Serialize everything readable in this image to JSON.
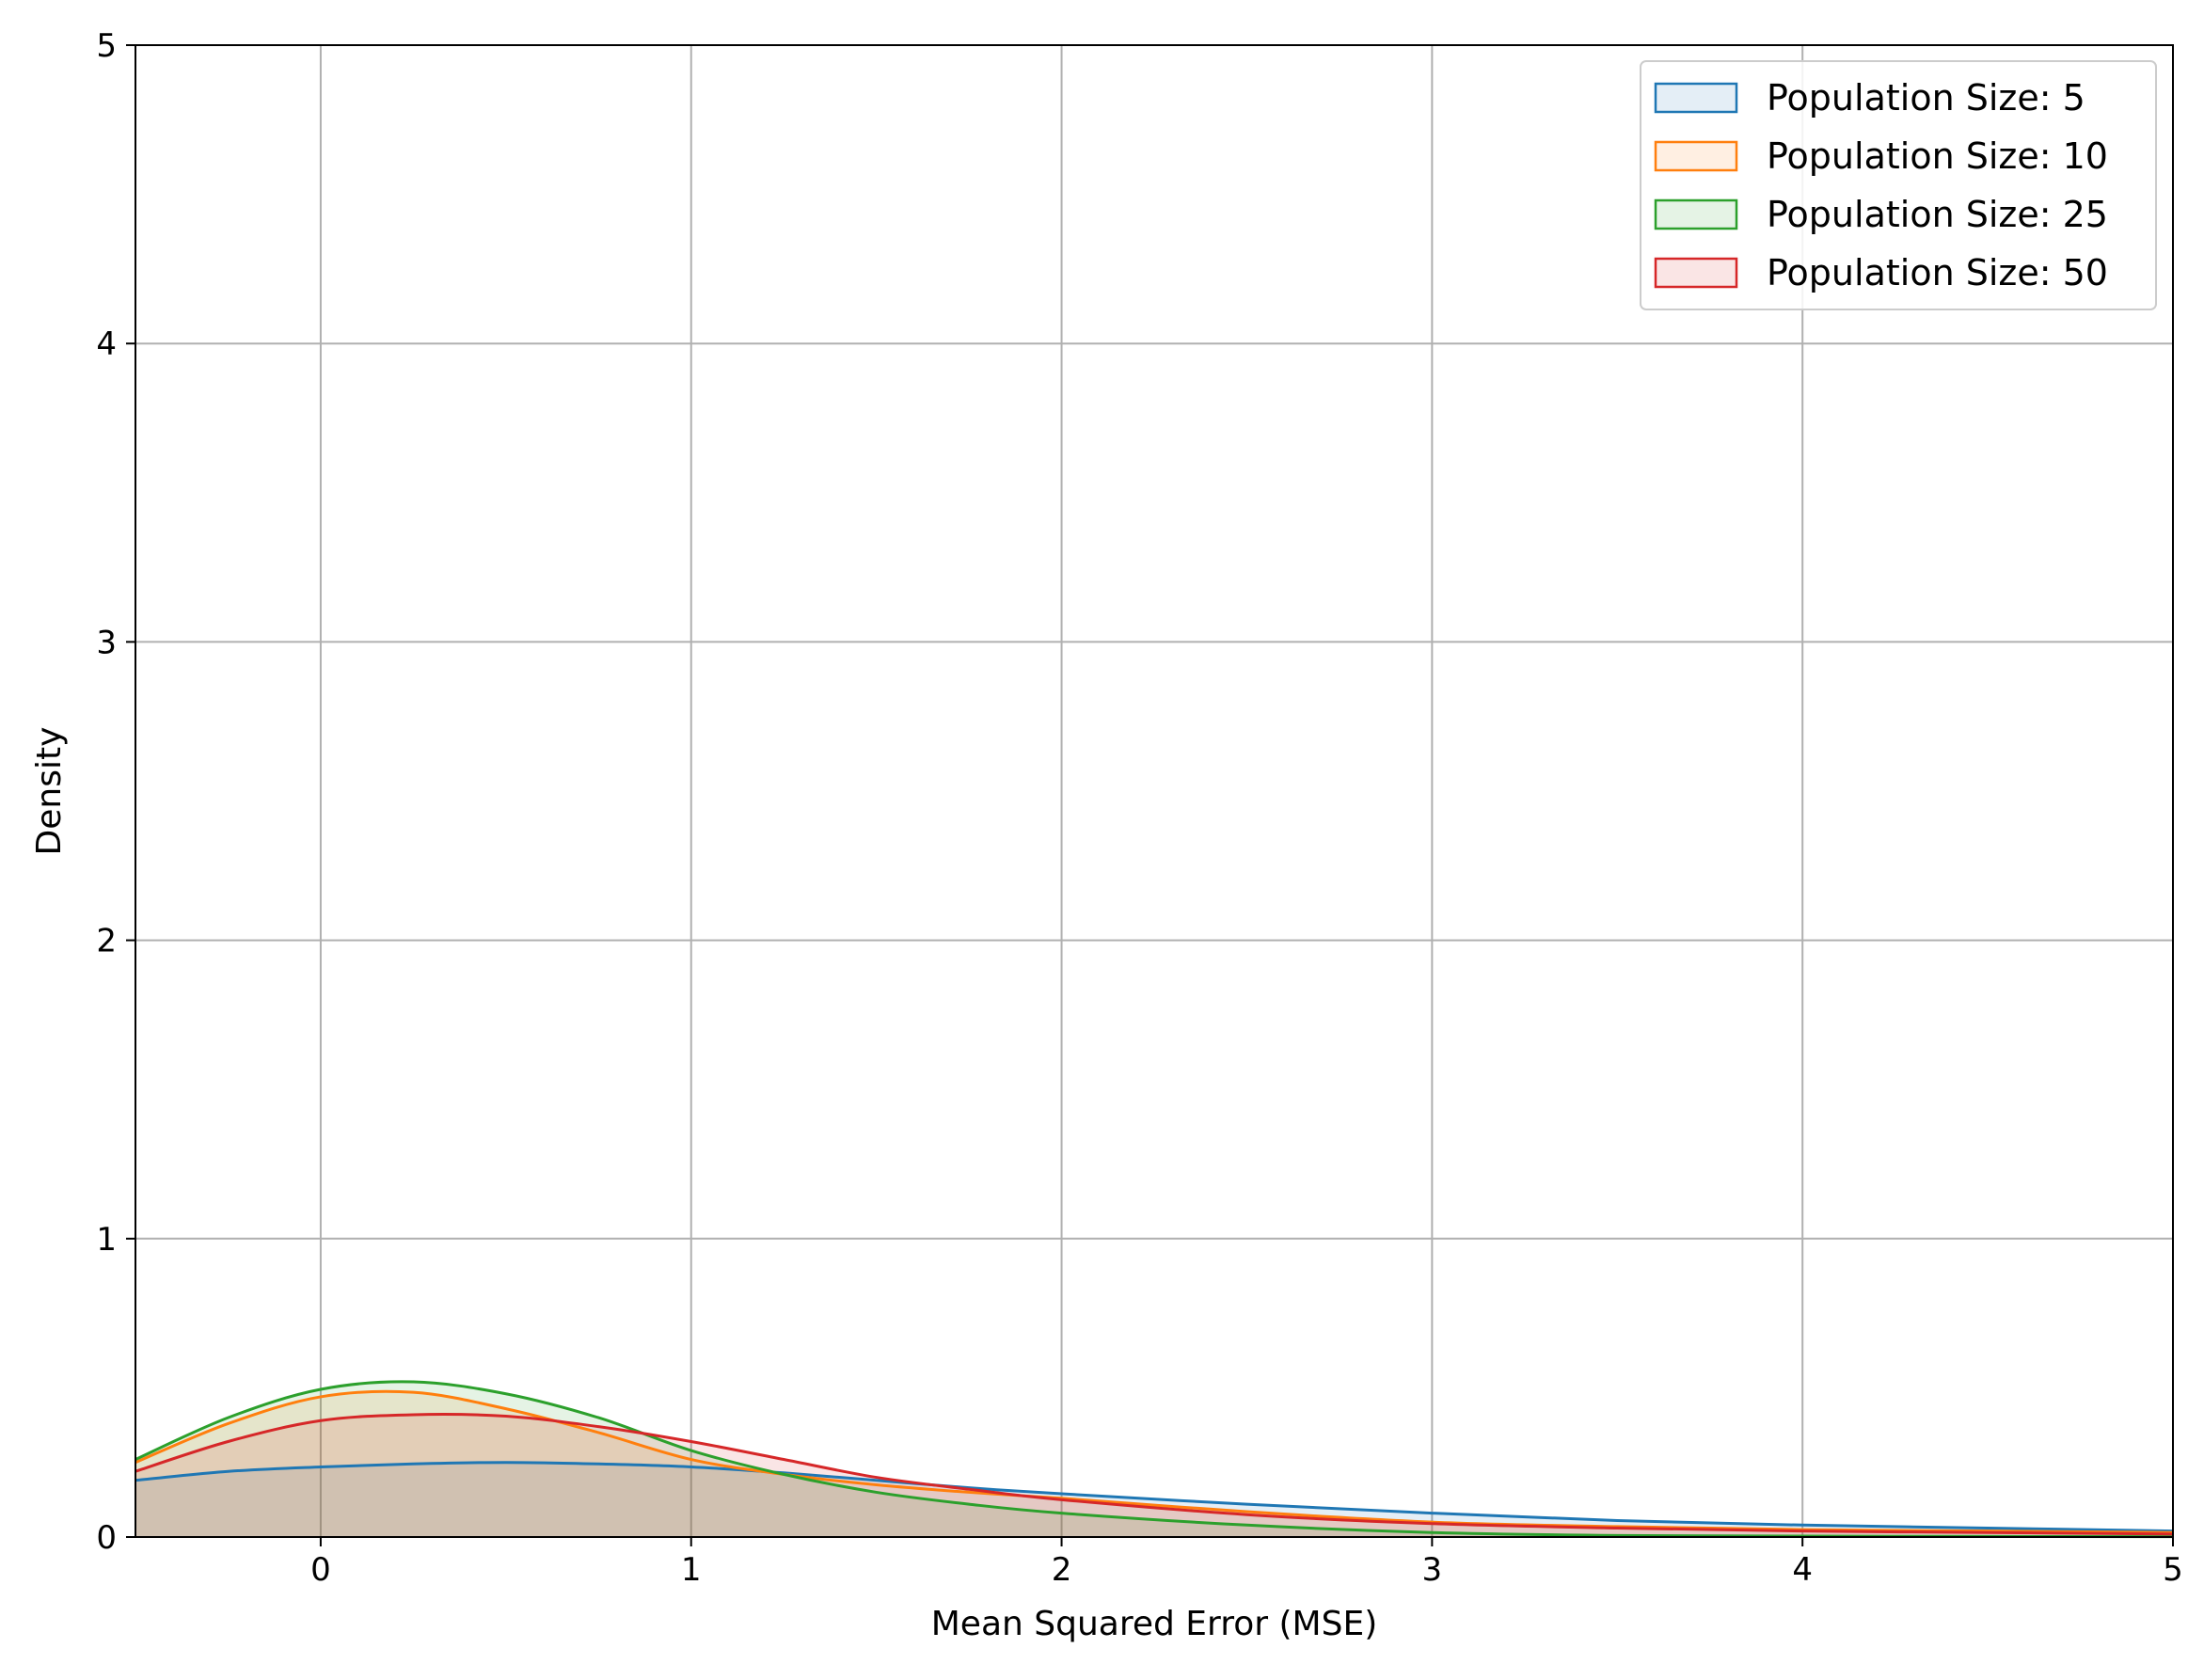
{
  "chart_data": {
    "type": "area",
    "xlabel": "Mean Squared Error (MSE)",
    "ylabel": "Density",
    "xlim": [
      -0.5,
      5
    ],
    "ylim": [
      0,
      5
    ],
    "xticks": [
      0,
      1,
      2,
      3,
      4,
      5
    ],
    "yticks": [
      0,
      1,
      2,
      3,
      4,
      5
    ],
    "grid": true,
    "legend_position": "top-right",
    "x": [
      -0.5,
      -0.25,
      0,
      0.25,
      0.5,
      0.75,
      1,
      1.25,
      1.5,
      1.75,
      2,
      2.5,
      3,
      3.5,
      4,
      4.5,
      5
    ],
    "series": [
      {
        "name": "Population Size: 5",
        "color": "#1f77b4",
        "values": [
          0.19,
          0.22,
          0.235,
          0.245,
          0.25,
          0.245,
          0.235,
          0.215,
          0.19,
          0.165,
          0.145,
          0.11,
          0.08,
          0.055,
          0.04,
          0.03,
          0.02
        ]
      },
      {
        "name": "Population Size: 10",
        "color": "#ff7f0e",
        "values": [
          0.25,
          0.38,
          0.47,
          0.485,
          0.43,
          0.35,
          0.26,
          0.21,
          0.175,
          0.15,
          0.13,
          0.085,
          0.05,
          0.035,
          0.025,
          0.02,
          0.015
        ]
      },
      {
        "name": "Population Size: 25",
        "color": "#2ca02c",
        "values": [
          0.26,
          0.4,
          0.495,
          0.52,
          0.48,
          0.4,
          0.29,
          0.21,
          0.15,
          0.11,
          0.08,
          0.04,
          0.015,
          0.005,
          0.003,
          0.002,
          0.001
        ]
      },
      {
        "name": "Population Size: 50",
        "color": "#d62728",
        "values": [
          0.22,
          0.32,
          0.39,
          0.41,
          0.405,
          0.37,
          0.32,
          0.26,
          0.2,
          0.16,
          0.125,
          0.075,
          0.045,
          0.03,
          0.02,
          0.015,
          0.01
        ]
      }
    ]
  }
}
